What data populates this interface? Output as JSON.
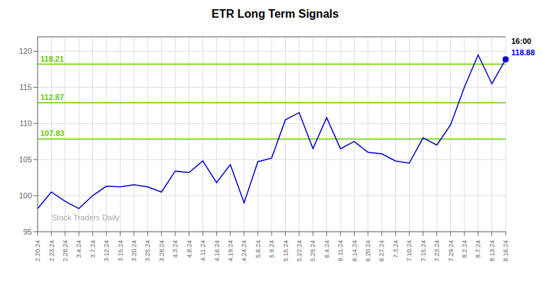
{
  "chart_data": {
    "type": "line",
    "title": "ETR Long Term Signals",
    "categories": [
      "2.20.24",
      "2.23.24",
      "2.28.24",
      "3.4.24",
      "3.7.24",
      "3.12.24",
      "3.15.24",
      "3.20.24",
      "3.25.24",
      "3.28.24",
      "4.3.24",
      "4.8.24",
      "4.11.24",
      "4.16.24",
      "4.19.24",
      "4.24.24",
      "5.6.24",
      "5.9.24",
      "5.15.24",
      "5.22.24",
      "5.29.24",
      "6.4.24",
      "6.11.24",
      "6.14.24",
      "6.20.24",
      "6.27.24",
      "7.3.24",
      "7.10.24",
      "7.15.24",
      "7.23.24",
      "7.29.24",
      "8.2.24",
      "8.7.24",
      "8.13.24",
      "8.16.24"
    ],
    "values": [
      98.2,
      100.5,
      99.2,
      98.2,
      100.0,
      101.3,
      101.2,
      101.5,
      101.2,
      100.5,
      103.4,
      103.2,
      104.8,
      101.8,
      104.3,
      99.0,
      104.7,
      105.2,
      110.5,
      111.5,
      106.5,
      110.8,
      106.5,
      107.5,
      106.0,
      105.8,
      104.8,
      104.5,
      108.0,
      107.0,
      109.8,
      115.0,
      119.5,
      115.5,
      118.88
    ],
    "color": "#0000cc",
    "ylim": [
      95,
      122
    ],
    "yticks": [
      95,
      100,
      105,
      110,
      115,
      120
    ],
    "grid": true,
    "reference_lines": {
      "values": [
        107.83,
        112.87,
        118.21
      ],
      "labels": [
        "107.83",
        "112.87",
        "118.21"
      ],
      "color": "#66cc00"
    },
    "annotations": [
      {
        "text": "16:00"
      },
      {
        "text": "118.88",
        "color": "#0000cc"
      },
      {
        "text": "Stock Traders Daily",
        "color": "#aaaaaa"
      }
    ]
  }
}
